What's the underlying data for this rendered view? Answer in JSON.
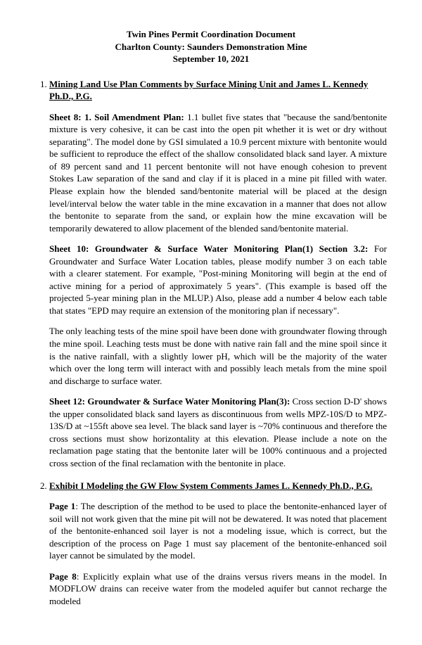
{
  "header": {
    "line1": "Twin Pines Permit Coordination Document",
    "line2": "Charlton County:  Saunders Demonstration Mine",
    "line3": "September 10, 2021"
  },
  "sections": {
    "s1": {
      "title": "Mining Land Use Plan Comments by Surface Mining Unit and James L. Kennedy Ph.D., P.G.",
      "p1_label": "Sheet 8: 1. Soil Amendment Plan:",
      "p1_body": " 1.1 bullet five states that \"because the sand/bentonite mixture is very cohesive, it can be cast into the open pit whether it is wet or dry without separating\". The model done by GSI simulated a 10.9 percent mixture with bentonite would be sufficient to reproduce the effect of the shallow consolidated black sand layer. A mixture of 89 percent sand and 11 percent bentonite will not have enough cohesion to prevent Stokes Law separation of the sand and clay if it is placed in a mine pit filled with water. Please explain how the blended sand/bentonite material will be placed at the design level/interval below the water table in the mine excavation in a manner that does not allow the bentonite to separate from the sand, or explain how the mine excavation will be temporarily dewatered to allow placement of the blended sand/bentonite material.",
      "p2_label": "Sheet 10: Groundwater & Surface Water Monitoring Plan(1) Section 3.2:",
      "p2_body": " For Groundwater and Surface Water Location tables, please modify number 3 on each table with a clearer statement. For example, \"Post-mining Monitoring will begin at the end of active mining for a period of approximately 5 years\". (This example is based off the projected 5-year mining plan in the MLUP.) Also,  please add a number 4  below each table that states \"EPD may require an extension of the monitoring plan if necessary\".",
      "p3_body": "The only leaching tests of the mine spoil have been done with groundwater flowing through the mine spoil. Leaching tests must be done with native rain fall and the mine spoil since it is the native rainfall, with a slightly lower pH, which will be the majority of the water which over the long term will interact with and possibly leach metals from the mine spoil and discharge to surface water.",
      "p4_label": "Sheet 12: Groundwater & Surface Water Monitoring Plan(3):",
      "p4_body": " Cross section D-D' shows the upper consolidated black sand layers as discontinuous from wells MPZ-10S/D to MPZ-13S/D at ~155ft above sea level. The black sand layer is ~70% continuous and therefore the cross sections must show horizontality at this elevation. Please include a note on the reclamation page stating that the bentonite later will be 100% continuous and a projected cross section of the final reclamation with the bentonite in place."
    },
    "s2": {
      "title": "Exhibit I Modeling the GW Flow System Comments James L. Kennedy Ph.D., P.G.",
      "p1_label": "Page 1",
      "p1_body": ": The description of the method to be used to place the bentonite-enhanced layer of soil will not work given that the mine pit will not be dewatered. It was noted that placement of the bentonite-enhanced soil layer is not a modeling issue, which is correct, but the description of the process on Page 1 must say placement of the bentonite-enhanced soil layer cannot be simulated by the model.",
      "p2_label": "Page 8",
      "p2_body": ": Explicitly explain what use of the drains versus rivers means in the model. In MODFLOW drains can receive water from the modeled aquifer but cannot recharge the modeled"
    }
  }
}
